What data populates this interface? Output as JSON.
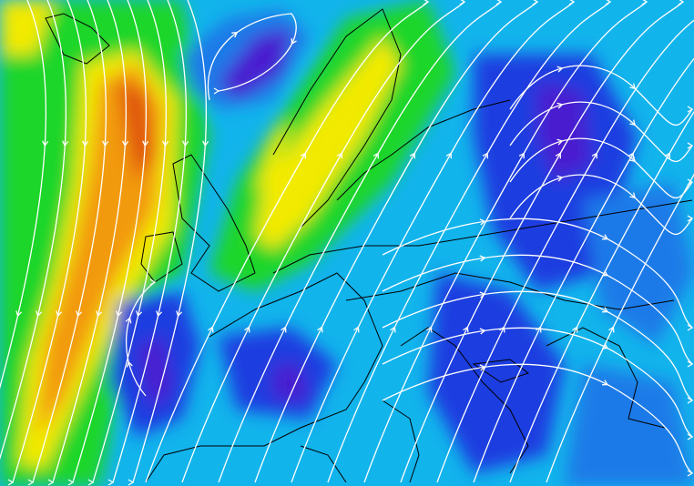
{
  "map": {
    "type": "wind-field-streamlines",
    "colors": {
      "background": "#12b4ec",
      "deep_blue": "#1a3ce0",
      "violet": "#4a1fd0",
      "blue": "#1f7ae8",
      "green": "#1ed62a",
      "yellow": "#f2ea06",
      "orange": "#f29a0a",
      "red_orange": "#e0520a",
      "streamline": "#ffffff",
      "coastline": "#000000"
    },
    "icons": [
      "streamline-arrow-icon"
    ]
  }
}
